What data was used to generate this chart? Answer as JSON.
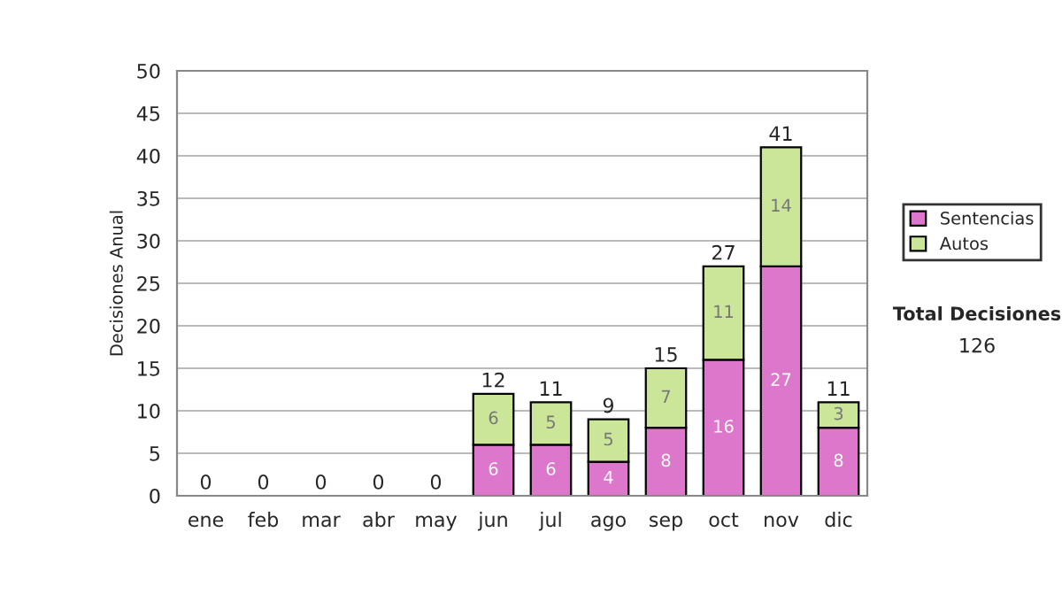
{
  "chart_data": {
    "type": "bar",
    "stacked": true,
    "ylabel": "Decisiones Anual",
    "categories": [
      "ene",
      "feb",
      "mar",
      "abr",
      "may",
      "jun",
      "jul",
      "ago",
      "sep",
      "oct",
      "nov",
      "dic"
    ],
    "series": [
      {
        "name": "Sentencias",
        "color": "#dd77cc",
        "values": [
          0,
          0,
          0,
          0,
          0,
          6,
          6,
          4,
          8,
          16,
          27,
          8
        ],
        "value_labels": [
          null,
          null,
          null,
          null,
          null,
          "6",
          "6",
          "4",
          "8",
          "16",
          "27",
          "8"
        ]
      },
      {
        "name": "Autos",
        "color": "#cce699",
        "values": [
          0,
          0,
          0,
          0,
          0,
          6,
          5,
          5,
          7,
          11,
          14,
          3
        ],
        "value_labels": [
          null,
          null,
          null,
          null,
          null,
          "6",
          "5",
          "5",
          "7",
          "11",
          "14",
          "3"
        ]
      }
    ],
    "totals": [
      "0",
      "0",
      "0",
      "0",
      "0",
      "12",
      "11",
      "9",
      "15",
      "27",
      "41",
      "11"
    ],
    "ylim": [
      0,
      50
    ],
    "yticks": [
      0,
      5,
      10,
      15,
      20,
      25,
      30,
      35,
      40,
      45,
      50
    ],
    "grid": "y",
    "legend": "right",
    "annotations": [
      "Total Decisiones",
      "126"
    ]
  }
}
